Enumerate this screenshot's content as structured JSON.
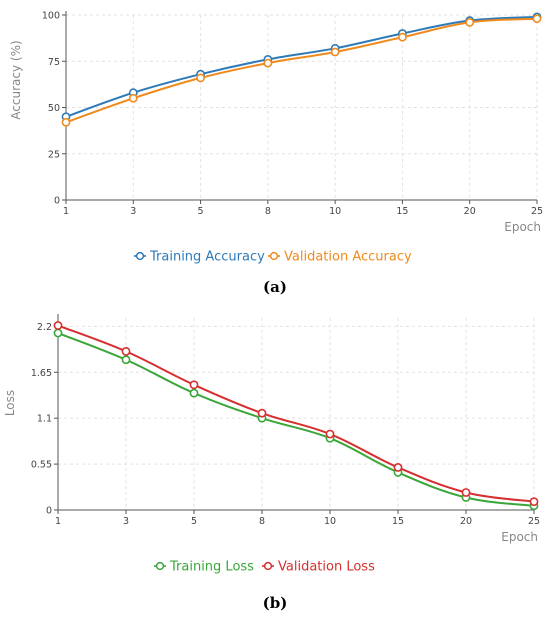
{
  "chart_data": [
    {
      "type": "line",
      "categories": [
        "1",
        "3",
        "5",
        "8",
        "10",
        "15",
        "20",
        "25"
      ],
      "xlabel": "Epoch",
      "ylabel": "Accuracy (%)",
      "ylim": [
        0,
        100
      ],
      "yticks": [
        "0",
        "25",
        "50",
        "75",
        "100"
      ],
      "grid": true,
      "legend": "bottom-center",
      "series": [
        {
          "name": "Training Accuracy",
          "color": "#2e7ab8",
          "values": [
            45,
            58,
            68,
            76,
            82,
            90,
            97,
            99
          ]
        },
        {
          "name": "Validation Accuracy",
          "color": "#f08a1c",
          "values": [
            42,
            55,
            66,
            74,
            80,
            88,
            96,
            98
          ]
        }
      ],
      "caption": "(a)"
    },
    {
      "type": "line",
      "categories": [
        "1",
        "3",
        "5",
        "8",
        "10",
        "15",
        "20",
        "25"
      ],
      "xlabel": "Epoch",
      "ylabel": "Loss",
      "ylim": [
        0,
        2.3
      ],
      "yticks": [
        "0",
        "0.55",
        "1.1",
        "1.65",
        "2.2"
      ],
      "grid": true,
      "legend": "bottom-center",
      "series": [
        {
          "name": "Training Loss",
          "color": "#3aa63a",
          "values": [
            2.12,
            1.8,
            1.4,
            1.1,
            0.86,
            0.45,
            0.15,
            0.05
          ]
        },
        {
          "name": "Validation Loss",
          "color": "#d62f2f",
          "values": [
            2.21,
            1.9,
            1.5,
            1.16,
            0.91,
            0.51,
            0.21,
            0.1
          ]
        }
      ],
      "caption": "(b)"
    }
  ]
}
